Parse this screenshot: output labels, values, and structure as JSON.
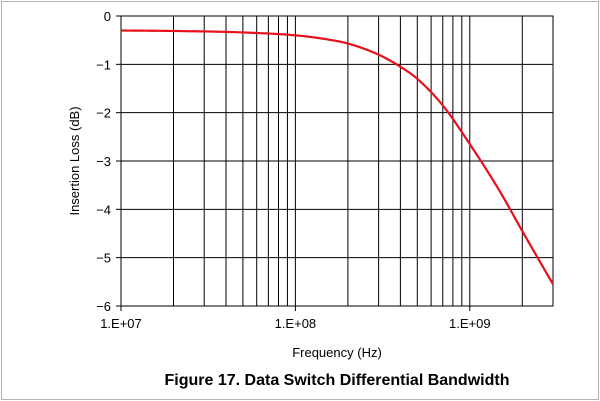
{
  "chart_data": {
    "type": "line",
    "title": "",
    "caption": "Figure 17. Data Switch Differential Bandwidth",
    "xlabel": "Frequency (Hz)",
    "ylabel": "Insertion Loss (dB)",
    "x_scale": "log",
    "xlim": [
      10000000,
      3000000000
    ],
    "ylim": [
      -6,
      0
    ],
    "x_ticks": [
      10000000,
      100000000,
      1000000000
    ],
    "x_tick_labels": [
      "1.E+07",
      "1.E+08",
      "1.E+09"
    ],
    "y_ticks": [
      0,
      -1,
      -2,
      -3,
      -4,
      -5,
      -6
    ],
    "y_tick_labels": [
      "0",
      "−1",
      "−2",
      "−3",
      "−4",
      "−5",
      "−6"
    ],
    "grid": true,
    "series": [
      {
        "color": "#e8101a",
        "x": [
          10000000,
          20000000,
          50000000,
          100000000,
          150000000,
          200000000,
          300000000,
          400000000,
          500000000,
          700000000,
          1000000000,
          1500000000,
          2000000000,
          3000000000
        ],
        "y": [
          -0.3,
          -0.31,
          -0.34,
          -0.4,
          -0.48,
          -0.57,
          -0.8,
          -1.05,
          -1.3,
          -1.85,
          -2.65,
          -3.65,
          -4.45,
          -5.55
        ]
      }
    ]
  }
}
